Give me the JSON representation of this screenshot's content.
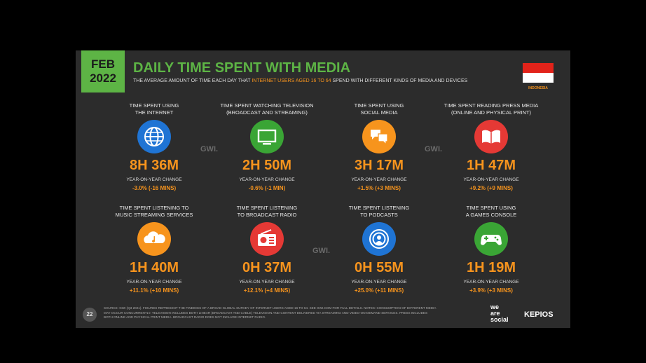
{
  "header": {
    "badge": [
      "FEB",
      "2022"
    ],
    "title": "DAILY TIME SPENT WITH MEDIA",
    "subtitle": [
      "THE AVERAGE AMOUNT OF TIME EACH DAY THAT ",
      "INTERNET USERS AGED 16 TO 64",
      " SPEND WITH DIFFERENT KINDS OF MEDIA AND DEVICES"
    ],
    "country": "INDONESIA"
  },
  "items": [
    {
      "label": [
        "TIME SPENT USING",
        "THE INTERNET"
      ],
      "value": "8H 36M",
      "yoy_label": "YEAR-ON-YEAR CHANGE",
      "yoy": "-3.0% (-16 MINS)",
      "color": "#1f74d4"
    },
    {
      "label": [
        "TIME SPENT WATCHING TELEVISION",
        "(BROADCAST AND STREAMING)"
      ],
      "value": "2H 50M",
      "yoy_label": "YEAR-ON-YEAR CHANGE",
      "yoy": "-0.6% (-1 MIN)",
      "color": "#3aa535"
    },
    {
      "label": [
        "TIME SPENT USING",
        "SOCIAL MEDIA"
      ],
      "value": "3H 17M",
      "yoy_label": "YEAR-ON-YEAR CHANGE",
      "yoy": "+1.5% (+3 MINS)",
      "color": "#f7941d"
    },
    {
      "label": [
        "TIME SPENT READING PRESS MEDIA",
        "(ONLINE AND PHYSICAL PRINT)"
      ],
      "value": "1H 47M",
      "yoy_label": "YEAR-ON-YEAR CHANGE",
      "yoy": "+9.2% (+9 MINS)",
      "color": "#e53935"
    },
    {
      "label": [
        "TIME SPENT LISTENING TO",
        "MUSIC STREAMING SERVICES"
      ],
      "value": "1H 40M",
      "yoy_label": "YEAR-ON-YEAR CHANGE",
      "yoy": "+11.1% (+10 MINS)",
      "color": "#f7941d"
    },
    {
      "label": [
        "TIME SPENT LISTENING",
        "TO BROADCAST RADIO"
      ],
      "value": "0H 37M",
      "yoy_label": "YEAR-ON-YEAR CHANGE",
      "yoy": "+12.1% (+4 MINS)",
      "color": "#e53935"
    },
    {
      "label": [
        "TIME SPENT LISTENING",
        "TO PODCASTS"
      ],
      "value": "0H 55M",
      "yoy_label": "YEAR-ON-YEAR CHANGE",
      "yoy": "+25.0% (+11 MINS)",
      "color": "#1f74d4"
    },
    {
      "label": [
        "TIME SPENT USING",
        "A GAMES CONSOLE"
      ],
      "value": "1H 19M",
      "yoy_label": "YEAR-ON-YEAR CHANGE",
      "yoy": "+3.9% (+3 MINS)",
      "color": "#3aa535"
    }
  ],
  "watermarks": [
    "GWI.",
    "GWI.",
    "GWI."
  ],
  "footer": {
    "page": "22",
    "source": [
      "SOURCE: GWI (Q3 2021). FIGURES REPRESENT THE FINDINGS OF A BROAD GLOBAL SURVEY OF INTERNET USERS AGED 16 TO 64. SEE GWI.COM FOR FULL DETAILS. NOTES: CONSUMPTION OF DIFFERENT MEDIA",
      "MAY OCCUR CONCURRENTLY. TELEVISION INCLUDES BOTH LINEAR (BROADCAST AND CABLE) TELEVISION AND CONTENT DELIVERED VIA STREAMING AND VIDEO-ON-DEMAND SERVICES. PRESS INCLUDES",
      "BOTH ONLINE AND PHYSICAL PRINT MEDIA. BROADCAST RADIO DOES NOT INCLUDE INTERNET RADIO."
    ],
    "logos": [
      "we",
      "are",
      "social",
      "KEPIOS"
    ]
  }
}
